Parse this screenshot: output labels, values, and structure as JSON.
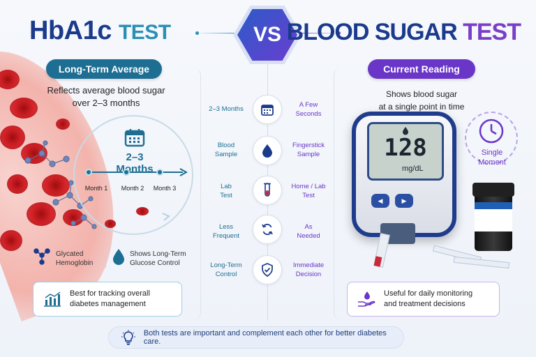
{
  "header": {
    "left_title_main": "HbA1c",
    "left_title_sub": "TEST",
    "vs": "VS",
    "right_title_main": "BLOOD SUGAR",
    "right_title_sub": "TEST"
  },
  "left": {
    "pill": "Long-Term Average",
    "desc_line1": "Reflects average blood sugar",
    "desc_line2": "over 2–3 months",
    "circle_label": "2–3 Months",
    "months": [
      "Month 1",
      "Month 2",
      "Month 3"
    ],
    "legend": [
      {
        "icon": "molecule-icon",
        "line1": "Glycated",
        "line2": "Hemoglobin"
      },
      {
        "icon": "drop-icon",
        "line1": "Shows Long-Term",
        "line2": "Glucose Control"
      }
    ],
    "box_line1": "Best for tracking overall",
    "box_line2": "diabetes management"
  },
  "right": {
    "pill": "Current Reading",
    "desc_line1": "Shows blood sugar",
    "desc_line2": "at a single point in time",
    "meter_value": "128",
    "meter_unit": "mg/dL",
    "single_line1": "Single",
    "single_line2": "Moment",
    "box_line1": "Useful for daily monitoring",
    "box_line2": "and treatment decisions"
  },
  "comparison": [
    {
      "left_1": "2–3 Months",
      "left_2": "",
      "icon": "calendar-icon",
      "right_1": "A Few",
      "right_2": "Seconds"
    },
    {
      "left_1": "Blood",
      "left_2": "Sample",
      "icon": "blood-drop-icon",
      "right_1": "Fingerstick",
      "right_2": "Sample"
    },
    {
      "left_1": "Lab",
      "left_2": "Test",
      "icon": "test-tube-icon",
      "right_1": "Home / Lab",
      "right_2": "Test"
    },
    {
      "left_1": "Less",
      "left_2": "Frequent",
      "icon": "refresh-icon",
      "right_1": "As",
      "right_2": "Needed"
    },
    {
      "left_1": "Long-Term",
      "left_2": "Control",
      "icon": "shield-check-icon",
      "right_1": "Immediate",
      "right_2": "Decision"
    }
  ],
  "footer": {
    "text": "Both tests are important and complement each other for better diabetes care."
  },
  "colors": {
    "navy": "#1b3a8c",
    "teal": "#1d6e92",
    "purple": "#6a36c8"
  }
}
